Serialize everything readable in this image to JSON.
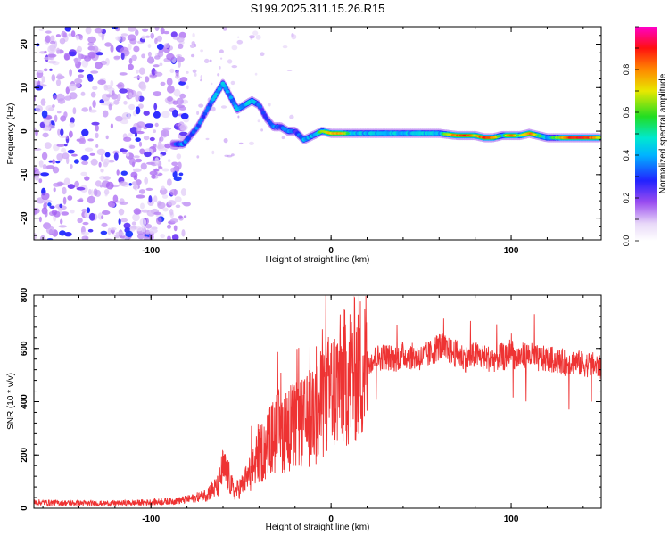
{
  "title": "S199.2025.311.15.26.R15",
  "chart_data": [
    {
      "type": "heatmap",
      "xlabel": "Height of straight line (km)",
      "ylabel": "Frequency (Hz)",
      "xlim": [
        -165,
        150
      ],
      "ylim": [
        -25,
        24
      ],
      "xticks": [
        -100,
        0,
        100
      ],
      "yticks": [
        20,
        10,
        0,
        -10,
        -20
      ],
      "colorbar": {
        "label": "Normalized spectral amplitude",
        "range": [
          0,
          1
        ],
        "ticks": [
          0.0,
          0.2,
          0.4,
          0.6,
          0.8
        ]
      },
      "noise_region": {
        "x_start": -165,
        "x_end": -80,
        "freq_range": [
          -25,
          24
        ],
        "amplitude": 0.18
      },
      "ridge": [
        {
          "x": -88,
          "f": -3,
          "a": 0.3
        },
        {
          "x": -82,
          "f": -3,
          "a": 0.45
        },
        {
          "x": -78,
          "f": -1,
          "a": 0.35
        },
        {
          "x": -74,
          "f": 1,
          "a": 0.4
        },
        {
          "x": -70,
          "f": 4,
          "a": 0.35
        },
        {
          "x": -66,
          "f": 7,
          "a": 0.5
        },
        {
          "x": -63,
          "f": 9,
          "a": 0.45
        },
        {
          "x": -60,
          "f": 11,
          "a": 0.55
        },
        {
          "x": -56,
          "f": 8,
          "a": 0.45
        },
        {
          "x": -52,
          "f": 5,
          "a": 0.5
        },
        {
          "x": -48,
          "f": 6,
          "a": 0.5
        },
        {
          "x": -44,
          "f": 7,
          "a": 0.55
        },
        {
          "x": -40,
          "f": 6,
          "a": 0.4
        },
        {
          "x": -36,
          "f": 3,
          "a": 0.3
        },
        {
          "x": -32,
          "f": 1,
          "a": 0.45
        },
        {
          "x": -28,
          "f": 1,
          "a": 0.4
        },
        {
          "x": -24,
          "f": 0,
          "a": 0.45
        },
        {
          "x": -20,
          "f": 0,
          "a": 0.35
        },
        {
          "x": -15,
          "f": -2,
          "a": 0.5
        },
        {
          "x": -10,
          "f": -1,
          "a": 0.5
        },
        {
          "x": -5,
          "f": 0,
          "a": 0.6
        },
        {
          "x": 0,
          "f": -0.5,
          "a": 0.75
        },
        {
          "x": 5,
          "f": -0.5,
          "a": 0.8
        },
        {
          "x": 10,
          "f": -0.5,
          "a": 0.55
        },
        {
          "x": 20,
          "f": -0.5,
          "a": 0.5
        },
        {
          "x": 30,
          "f": -0.5,
          "a": 0.55
        },
        {
          "x": 40,
          "f": -0.5,
          "a": 0.5
        },
        {
          "x": 50,
          "f": -0.5,
          "a": 0.55
        },
        {
          "x": 60,
          "f": -0.5,
          "a": 0.5
        },
        {
          "x": 70,
          "f": -1,
          "a": 0.85
        },
        {
          "x": 75,
          "f": -1,
          "a": 0.9
        },
        {
          "x": 80,
          "f": -1,
          "a": 0.7
        },
        {
          "x": 85,
          "f": -1.5,
          "a": 0.9
        },
        {
          "x": 90,
          "f": -1.5,
          "a": 0.8
        },
        {
          "x": 95,
          "f": -1,
          "a": 0.5
        },
        {
          "x": 100,
          "f": -1,
          "a": 0.9
        },
        {
          "x": 105,
          "f": -1,
          "a": 0.6
        },
        {
          "x": 110,
          "f": -0.5,
          "a": 0.85
        },
        {
          "x": 115,
          "f": -1,
          "a": 0.6
        },
        {
          "x": 120,
          "f": -1.5,
          "a": 0.5
        },
        {
          "x": 125,
          "f": -1.5,
          "a": 0.6
        },
        {
          "x": 130,
          "f": -1.5,
          "a": 0.85
        },
        {
          "x": 135,
          "f": -1.5,
          "a": 0.9
        },
        {
          "x": 140,
          "f": -1.5,
          "a": 0.9
        },
        {
          "x": 145,
          "f": -1.5,
          "a": 0.85
        },
        {
          "x": 149,
          "f": -1.5,
          "a": 0.7
        }
      ]
    },
    {
      "type": "line",
      "xlabel": "Height of straight line (km)",
      "ylabel": "SNR (10 * v/v)",
      "xlim": [
        -165,
        150
      ],
      "ylim": [
        0,
        800
      ],
      "xticks": [
        -100,
        0,
        100
      ],
      "yticks": [
        0,
        200,
        400,
        600,
        800
      ],
      "series": [
        {
          "name": "SNR",
          "color": "#ee3333",
          "x": [
            -165,
            -150,
            -130,
            -110,
            -95,
            -85,
            -78,
            -72,
            -68,
            -63,
            -60,
            -57,
            -54,
            -50,
            -45,
            -40,
            -36,
            -33,
            -30,
            -26,
            -22,
            -18,
            -14,
            -10,
            -6,
            -2,
            2,
            6,
            10,
            14,
            18,
            22,
            26,
            30,
            35,
            40,
            50,
            55,
            60,
            65,
            70,
            75,
            80,
            85,
            90,
            95,
            98,
            100,
            102,
            105,
            110,
            115,
            120,
            125,
            130,
            135,
            140,
            145,
            150
          ],
          "y": [
            22,
            20,
            18,
            20,
            24,
            28,
            35,
            45,
            60,
            80,
            150,
            120,
            60,
            80,
            130,
            200,
            230,
            260,
            290,
            290,
            300,
            310,
            320,
            340,
            380,
            420,
            450,
            480,
            500,
            520,
            540,
            555,
            565,
            570,
            560,
            575,
            565,
            580,
            610,
            590,
            580,
            560,
            575,
            565,
            560,
            570,
            560,
            610,
            560,
            570,
            575,
            560,
            560,
            555,
            545,
            550,
            540,
            540,
            525
          ]
        }
      ]
    }
  ]
}
